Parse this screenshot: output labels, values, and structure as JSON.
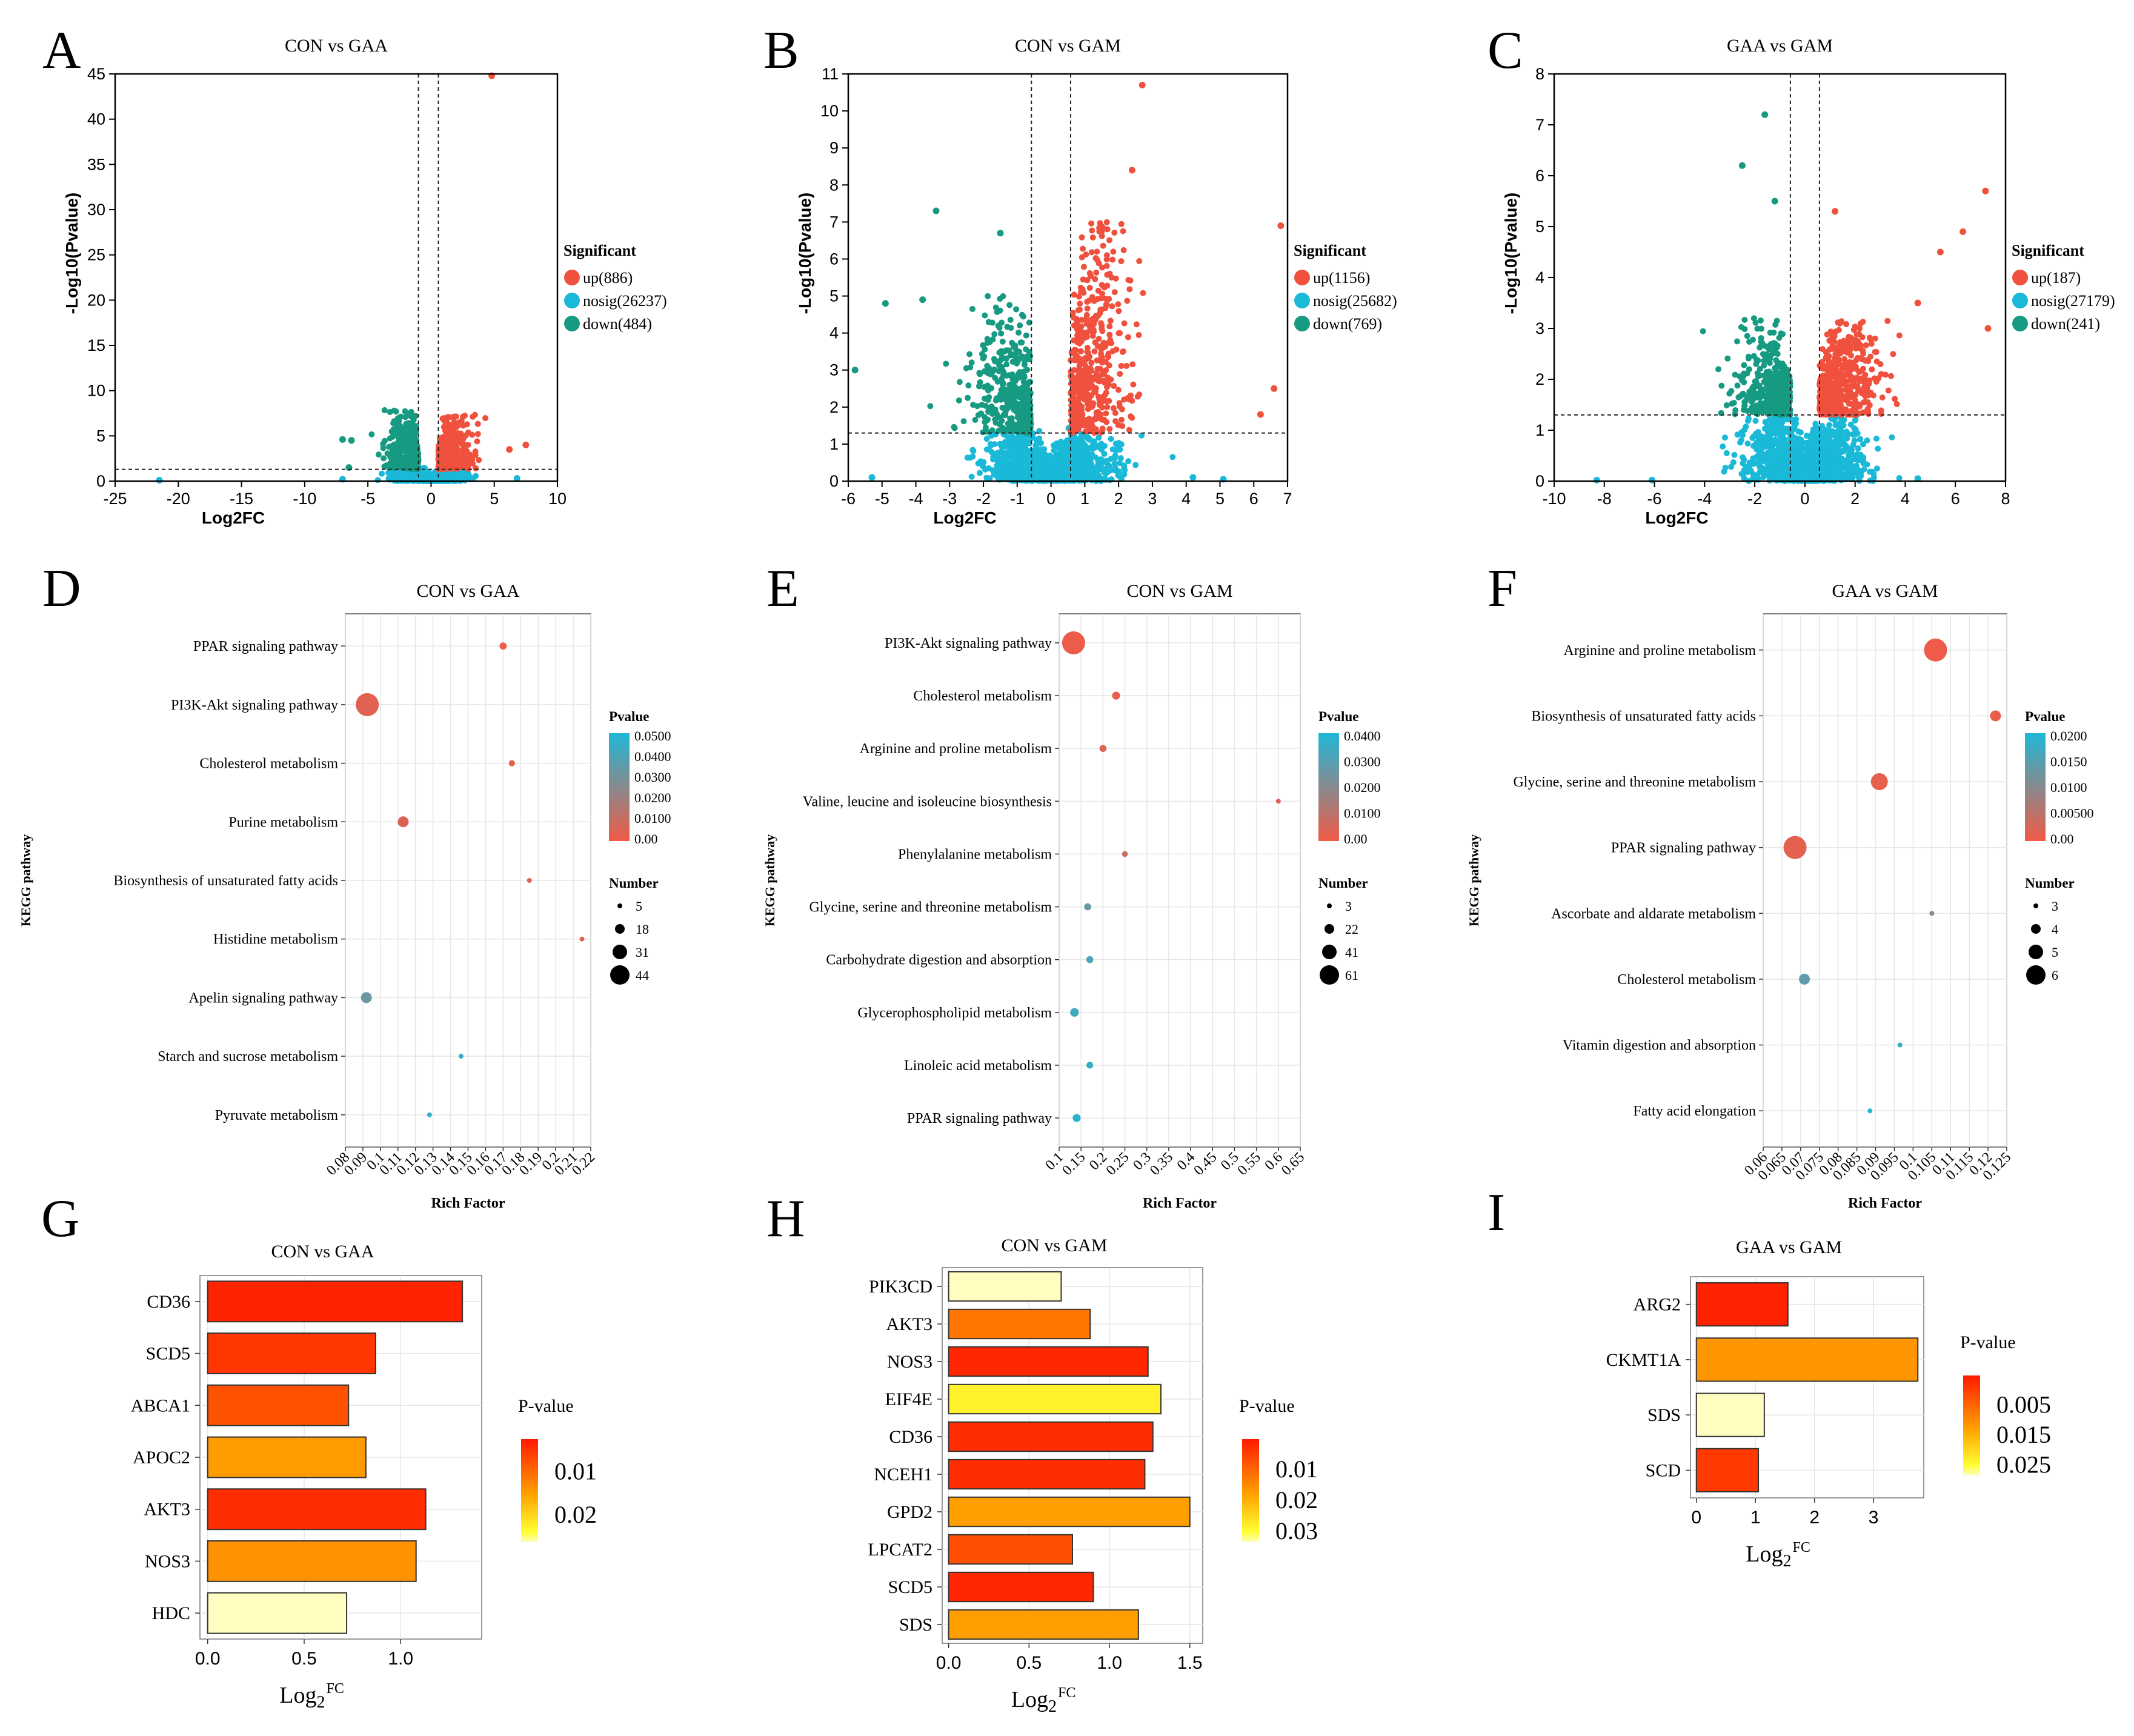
{
  "colors": {
    "up": "#f0513e",
    "nosig": "#1ab9d8",
    "down": "#179a82",
    "grid": "#e6e6e6"
  },
  "volcano": [
    {
      "letter": "A",
      "title": "CON vs GAA",
      "xlabel": "Log2FC",
      "ylabel": "-Log10(Pvalue)",
      "xlim": [
        -25,
        10
      ],
      "ylim": [
        0,
        45
      ],
      "xticks": [
        -25,
        -20,
        -15,
        -10,
        -5,
        0,
        5,
        10
      ],
      "yticks": [
        0,
        5,
        10,
        15,
        20,
        25,
        30,
        35,
        40,
        45
      ],
      "vlines": [
        -1,
        0.58
      ],
      "hline": 1.3,
      "legend_title": "Significant",
      "legend": [
        "up(886)",
        "nosig(26237)",
        "down(484)"
      ],
      "cloud": {
        "xspread": 3.2,
        "nosig_ymax": 1.3,
        "up_ymax": 7.5,
        "down_ymax": 8
      },
      "outliers": [
        {
          "x": 4.8,
          "y": 44.8,
          "s": "up"
        },
        {
          "x": 6.2,
          "y": 3.5,
          "s": "up"
        },
        {
          "x": 7.5,
          "y": 4,
          "s": "up"
        },
        {
          "x": -21.5,
          "y": 0.1,
          "s": "nosig"
        },
        {
          "x": -7,
          "y": 0.2,
          "s": "nosig"
        },
        {
          "x": -7,
          "y": 4.6,
          "s": "down"
        },
        {
          "x": -6.3,
          "y": 4.5,
          "s": "down"
        },
        {
          "x": -6.5,
          "y": 1.5,
          "s": "down"
        },
        {
          "x": 6.8,
          "y": 0.3,
          "s": "nosig"
        }
      ]
    },
    {
      "letter": "B",
      "title": "CON vs GAM",
      "xlabel": "Log2FC",
      "ylabel": "-Log10(Pvalue)",
      "xlim": [
        -6,
        7
      ],
      "ylim": [
        0,
        11
      ],
      "xticks": [
        -6,
        -5,
        -4,
        -3,
        -2,
        -1,
        0,
        1,
        2,
        3,
        4,
        5,
        6,
        7
      ],
      "yticks": [
        0,
        1,
        2,
        3,
        4,
        5,
        6,
        7,
        8,
        9,
        10,
        11
      ],
      "vlines": [
        -0.58,
        0.58
      ],
      "hline": 1.3,
      "legend_title": "Significant",
      "legend": [
        "up(1156)",
        "nosig(25682)",
        "down(769)"
      ],
      "cloud": {
        "xspread": 2.4,
        "nosig_ymax": 1.3,
        "up_ymax": 7,
        "down_ymax": 5
      },
      "outliers": [
        {
          "x": 2.7,
          "y": 10.7,
          "s": "up"
        },
        {
          "x": 2.4,
          "y": 8.4,
          "s": "up"
        },
        {
          "x": 6.8,
          "y": 6.9,
          "s": "up"
        },
        {
          "x": 6.6,
          "y": 2.5,
          "s": "up"
        },
        {
          "x": 6.2,
          "y": 1.8,
          "s": "up"
        },
        {
          "x": -3.4,
          "y": 7.3,
          "s": "down"
        },
        {
          "x": -1.5,
          "y": 6.7,
          "s": "down"
        },
        {
          "x": -3.8,
          "y": 4.9,
          "s": "down"
        },
        {
          "x": -4.9,
          "y": 4.8,
          "s": "down"
        },
        {
          "x": -5.8,
          "y": 3,
          "s": "down"
        },
        {
          "x": -5.3,
          "y": 0.1,
          "s": "nosig"
        },
        {
          "x": 5.1,
          "y": 0.05,
          "s": "nosig"
        },
        {
          "x": 4.2,
          "y": 0.1,
          "s": "nosig"
        }
      ]
    },
    {
      "letter": "C",
      "title": "GAA vs GAM",
      "xlabel": "Log2FC",
      "ylabel": "-Log10(Pvalue)",
      "xlim": [
        -10,
        8
      ],
      "ylim": [
        0,
        8
      ],
      "xticks": [
        -10,
        -8,
        -6,
        -4,
        -2,
        0,
        2,
        4,
        6,
        8
      ],
      "yticks": [
        0,
        1,
        2,
        3,
        4,
        5,
        6,
        7,
        8
      ],
      "vlines": [
        -0.58,
        0.58
      ],
      "hline": 1.3,
      "legend_title": "Significant",
      "legend": [
        "up(187)",
        "nosig(27179)",
        "down(241)"
      ],
      "cloud": {
        "xspread": 3,
        "nosig_ymax": 1.3,
        "up_ymax": 3.2,
        "down_ymax": 3.2
      },
      "outliers": [
        {
          "x": 7.2,
          "y": 5.7,
          "s": "up"
        },
        {
          "x": 6.3,
          "y": 4.9,
          "s": "up"
        },
        {
          "x": 5.4,
          "y": 4.5,
          "s": "up"
        },
        {
          "x": 4.5,
          "y": 3.5,
          "s": "up"
        },
        {
          "x": 7.3,
          "y": 3,
          "s": "up"
        },
        {
          "x": 1.2,
          "y": 5.3,
          "s": "up"
        },
        {
          "x": -1.6,
          "y": 7.2,
          "s": "down"
        },
        {
          "x": -2.5,
          "y": 6.2,
          "s": "down"
        },
        {
          "x": -1.2,
          "y": 5.5,
          "s": "down"
        },
        {
          "x": -8.3,
          "y": 0.02,
          "s": "nosig"
        },
        {
          "x": -6.1,
          "y": 0.02,
          "s": "nosig"
        },
        {
          "x": 4.5,
          "y": 0.05,
          "s": "nosig"
        }
      ]
    }
  ],
  "kegg": [
    {
      "letter": "D",
      "title": "CON vs GAA",
      "xlabel": "Rich Factor",
      "ylabel": "KEGG pathway",
      "xlim": [
        0.08,
        0.22
      ],
      "xticks": [
        "0.08",
        "0.09",
        "0.1",
        "0.11",
        "0.12",
        "0.13",
        "0.14",
        "0.15",
        "0.16",
        "0.17",
        "0.18",
        "0.19",
        "0.2",
        "0.21",
        "0.22"
      ],
      "pvalue_title": "Pvalue",
      "pvalue_labels": [
        "0.0500",
        "0.0400",
        "0.0300",
        "0.0200",
        "0.0100",
        "0.00"
      ],
      "pmax": 0.05,
      "number_title": "Number",
      "number_labels": [
        "5",
        "18",
        "31",
        "44"
      ],
      "nmin": 5,
      "nmax": 44,
      "pathways": [
        {
          "name": "PPAR signaling pathway",
          "rf": 0.17,
          "p": 0.002,
          "n": 10
        },
        {
          "name": "PI3K-Akt signaling pathway",
          "rf": 0.0925,
          "p": 0.004,
          "n": 44
        },
        {
          "name": "Cholesterol metabolism",
          "rf": 0.175,
          "p": 0.003,
          "n": 8
        },
        {
          "name": "Purine metabolism",
          "rf": 0.113,
          "p": 0.005,
          "n": 18
        },
        {
          "name": "Biosynthesis of unsaturated fatty acids",
          "rf": 0.185,
          "p": 0.006,
          "n": 5
        },
        {
          "name": "Histidine metabolism",
          "rf": 0.215,
          "p": 0.005,
          "n": 4
        },
        {
          "name": "Apelin signaling pathway",
          "rf": 0.092,
          "p": 0.032,
          "n": 18
        },
        {
          "name": "Starch and sucrose metabolism",
          "rf": 0.146,
          "p": 0.045,
          "n": 5
        },
        {
          "name": "Pyruvate metabolism",
          "rf": 0.128,
          "p": 0.045,
          "n": 5
        }
      ]
    },
    {
      "letter": "E",
      "title": "CON vs GAM",
      "xlabel": "Rich Factor",
      "ylabel": "KEGG pathway",
      "xlim": [
        0.1,
        0.65
      ],
      "xticks": [
        "0.1",
        "0.15",
        "0.2",
        "0.25",
        "0.3",
        "0.35",
        "0.4",
        "0.45",
        "0.5",
        "0.55",
        "0.6",
        "0.65"
      ],
      "pvalue_title": "Pvalue",
      "pvalue_labels": [
        "0.0400",
        "0.0300",
        "0.0200",
        "0.0100",
        "0.00"
      ],
      "pmax": 0.045,
      "number_title": "Number",
      "number_labels": [
        "3",
        "22",
        "41",
        "61"
      ],
      "nmin": 3,
      "nmax": 61,
      "pathways": [
        {
          "name": "PI3K-Akt signaling pathway",
          "rf": 0.133,
          "p": 0.001,
          "n": 61
        },
        {
          "name": "Cholesterol metabolism",
          "rf": 0.23,
          "p": 0.002,
          "n": 13
        },
        {
          "name": "Arginine and proline metabolism",
          "rf": 0.2,
          "p": 0.004,
          "n": 10
        },
        {
          "name": "Valine, leucine and isoleucine biosynthesis",
          "rf": 0.6,
          "p": 0.005,
          "n": 3
        },
        {
          "name": "Phenylalanine metabolism",
          "rf": 0.25,
          "p": 0.008,
          "n": 6
        },
        {
          "name": "Glycine, serine and threonine metabolism",
          "rf": 0.165,
          "p": 0.03,
          "n": 10
        },
        {
          "name": "Carbohydrate digestion and absorption",
          "rf": 0.17,
          "p": 0.035,
          "n": 10
        },
        {
          "name": "Glycerophospholipid metabolism",
          "rf": 0.135,
          "p": 0.038,
          "n": 15
        },
        {
          "name": "Linoleic acid metabolism",
          "rf": 0.17,
          "p": 0.04,
          "n": 9
        },
        {
          "name": "PPAR signaling pathway",
          "rf": 0.14,
          "p": 0.043,
          "n": 13
        }
      ]
    },
    {
      "letter": "F",
      "title": "GAA vs GAM",
      "xlabel": "Rich Factor",
      "ylabel": "KEGG pathway",
      "xlim": [
        0.06,
        0.125
      ],
      "xticks": [
        "0.06",
        "0.065",
        "0.07",
        "0.075",
        "0.08",
        "0.085",
        "0.09",
        "0.095",
        "0.1",
        "0.105",
        "0.11",
        "0.115",
        "0.12",
        "0.125"
      ],
      "pvalue_title": "Pvalue",
      "pvalue_labels": [
        "0.0200",
        "0.0150",
        "0.0100",
        "0.00500",
        "0.00"
      ],
      "pmax": 0.02,
      "number_title": "Number",
      "number_labels": [
        "3",
        "4",
        "5",
        "6"
      ],
      "nmin": 3,
      "nmax": 6,
      "pathways": [
        {
          "name": "Arginine and proline metabolism",
          "rf": 0.106,
          "p": 0.0003,
          "n": 6
        },
        {
          "name": "Biosynthesis of unsaturated fatty acids",
          "rf": 0.122,
          "p": 0.0005,
          "n": 4
        },
        {
          "name": "Glycine, serine and threonine metabolism",
          "rf": 0.091,
          "p": 0.001,
          "n": 5
        },
        {
          "name": "PPAR signaling pathway",
          "rf": 0.0685,
          "p": 0.0012,
          "n": 6
        },
        {
          "name": "Ascorbate and aldarate metabolism",
          "rf": 0.105,
          "p": 0.011,
          "n": 3
        },
        {
          "name": "Cholesterol metabolism",
          "rf": 0.071,
          "p": 0.014,
          "n": 4
        },
        {
          "name": "Vitamin digestion and absorption",
          "rf": 0.0965,
          "p": 0.017,
          "n": 3
        },
        {
          "name": "Fatty acid elongation",
          "rf": 0.0885,
          "p": 0.02,
          "n": 3
        }
      ]
    }
  ],
  "bars": [
    {
      "letter": "G",
      "title": "CON vs GAA",
      "xlabel_base": "Log",
      "xlabel_sub": "2",
      "xlabel_sup": "FC",
      "xlim": [
        -0.04,
        1.42
      ],
      "xticks": [
        {
          "v": 0,
          "t": "0.0"
        },
        {
          "v": 0.5,
          "t": "0.5"
        },
        {
          "v": 1,
          "t": "1.0"
        }
      ],
      "pvalue_title": "P-value",
      "pvalue_labels": [
        "0.01",
        "0.02"
      ],
      "pmax": 0.025,
      "genes": [
        {
          "name": "CD36",
          "v": 1.32,
          "p": 0.001
        },
        {
          "name": "SCD5",
          "v": 0.87,
          "p": 0.003
        },
        {
          "name": "ABCA1",
          "v": 0.73,
          "p": 0.006
        },
        {
          "name": "APOC2",
          "v": 0.82,
          "p": 0.014
        },
        {
          "name": "AKT3",
          "v": 1.13,
          "p": 0.002
        },
        {
          "name": "NOS3",
          "v": 1.08,
          "p": 0.013
        },
        {
          "name": "HDC",
          "v": 0.72,
          "p": 0.03
        }
      ]
    },
    {
      "letter": "H",
      "title": "CON vs GAM",
      "xlabel_base": "Log",
      "xlabel_sub": "2",
      "xlabel_sup": "FC",
      "xlim": [
        -0.04,
        1.58
      ],
      "xticks": [
        {
          "v": 0,
          "t": "0.0"
        },
        {
          "v": 0.5,
          "t": "0.5"
        },
        {
          "v": 1,
          "t": "1.0"
        },
        {
          "v": 1.5,
          "t": "1.5"
        }
      ],
      "pvalue_title": "P-value",
      "pvalue_labels": [
        "0.01",
        "0.02",
        "0.03"
      ],
      "pmax": 0.035,
      "genes": [
        {
          "name": "PIK3CD",
          "v": 0.7,
          "p": 0.04
        },
        {
          "name": "AKT3",
          "v": 0.88,
          "p": 0.014
        },
        {
          "name": "NOS3",
          "v": 1.24,
          "p": 0.002
        },
        {
          "name": "EIF4E",
          "v": 1.32,
          "p": 0.03
        },
        {
          "name": "CD36",
          "v": 1.27,
          "p": 0.003
        },
        {
          "name": "NCEH1",
          "v": 1.22,
          "p": 0.003
        },
        {
          "name": "GPD2",
          "v": 1.5,
          "p": 0.02
        },
        {
          "name": "LPCAT2",
          "v": 0.77,
          "p": 0.008
        },
        {
          "name": "SCD5",
          "v": 0.9,
          "p": 0.002
        },
        {
          "name": "SDS",
          "v": 1.18,
          "p": 0.02
        }
      ]
    },
    {
      "letter": "I",
      "title": "GAA vs GAM",
      "xlabel_base": "Log",
      "xlabel_sub": "2",
      "xlabel_sup": "FC",
      "xlim": [
        -0.1,
        3.85
      ],
      "xticks": [
        {
          "v": 0,
          "t": "0"
        },
        {
          "v": 1,
          "t": "1"
        },
        {
          "v": 2,
          "t": "2"
        },
        {
          "v": 3,
          "t": "3"
        }
      ],
      "pvalue_title": "P-value",
      "pvalue_labels": [
        "0.005",
        "0.015",
        "0.025"
      ],
      "pmax": 0.03,
      "genes": [
        {
          "name": "ARG2",
          "v": 1.55,
          "p": 0.001
        },
        {
          "name": "CKMT1A",
          "v": 3.75,
          "p": 0.016
        },
        {
          "name": "SDS",
          "v": 1.15,
          "p": 0.031
        },
        {
          "name": "SCD",
          "v": 1.05,
          "p": 0.004
        }
      ]
    }
  ]
}
